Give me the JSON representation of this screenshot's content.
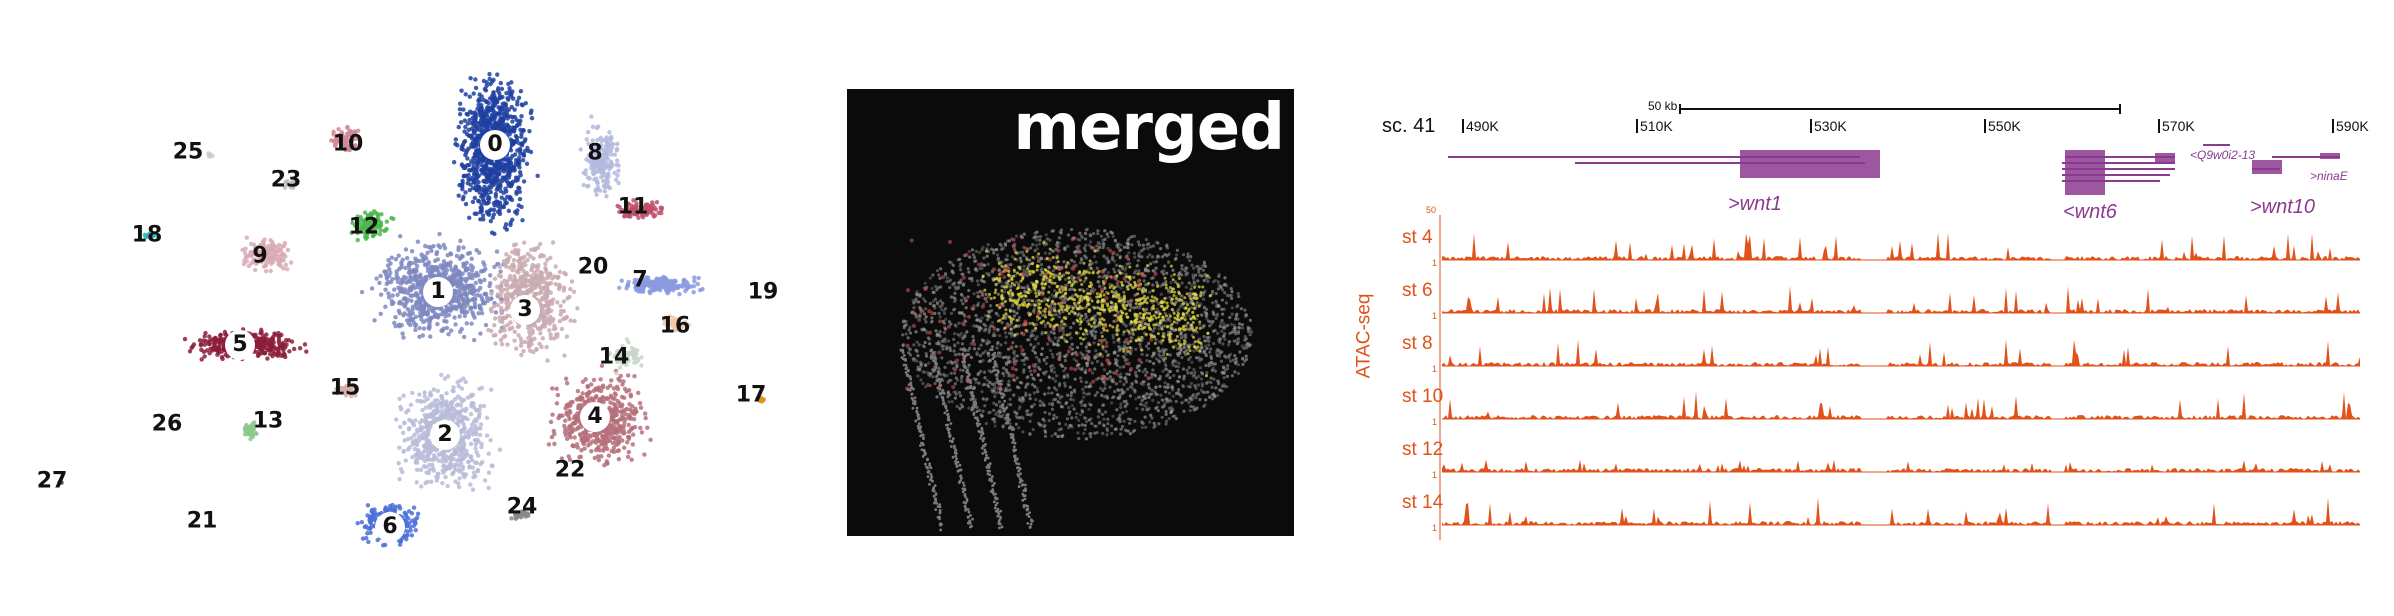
{
  "umap": {
    "cluster_labels": [
      "0",
      "1",
      "2",
      "3",
      "4",
      "5",
      "6",
      "7",
      "8",
      "9",
      "10",
      "11",
      "12",
      "13",
      "14",
      "15",
      "16",
      "17",
      "18",
      "19",
      "20",
      "21",
      "22",
      "23",
      "24",
      "25",
      "26",
      "27"
    ]
  },
  "microscopy": {
    "title": "merged"
  },
  "genome_browser": {
    "scaffold": "sc. 41",
    "scale_bar": "50 kb",
    "positions": [
      "490K",
      "510K",
      "530K",
      "550K",
      "570K",
      "590K"
    ],
    "genes": [
      ">wnt1",
      "<wnt6",
      ">wnt10",
      "<Q9w0i2-13",
      ">ninaE"
    ],
    "y_axis_label": "ATAC-seq",
    "scale_max": "50",
    "tracks": [
      {
        "label": "st 4",
        "scale_min": "1"
      },
      {
        "label": "st 6",
        "scale_min": "1"
      },
      {
        "label": "st 8",
        "scale_min": "1"
      },
      {
        "label": "st 10",
        "scale_min": "1"
      },
      {
        "label": "st 12",
        "scale_min": "1"
      },
      {
        "label": "st 14",
        "scale_min": "1"
      }
    ],
    "track_color": "#e0521a",
    "gene_color": "#8b3a8f"
  }
}
